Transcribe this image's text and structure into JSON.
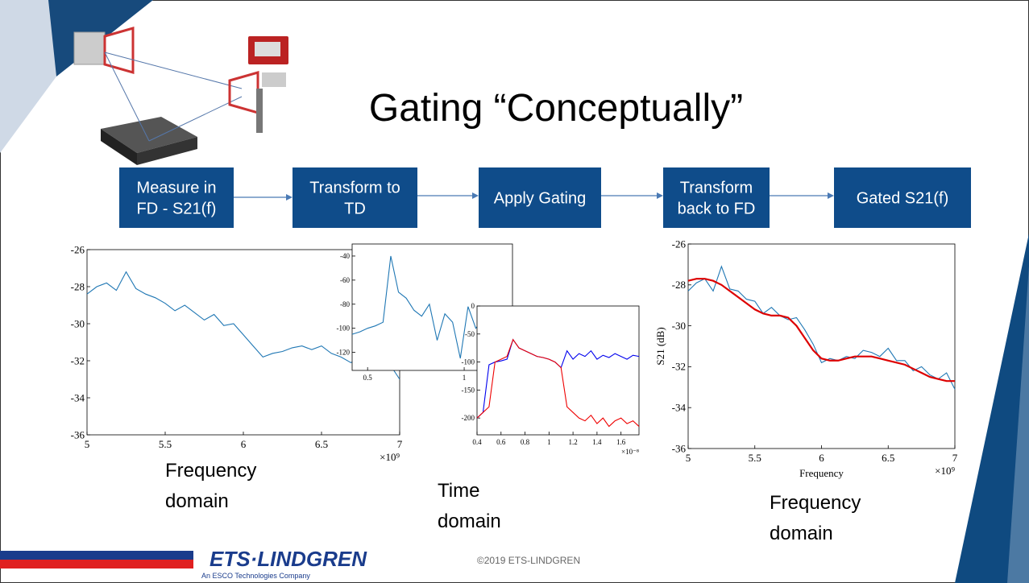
{
  "title": "Gating “Conceptually”",
  "steps": [
    [
      "Measure in",
      "FD - S21(f)"
    ],
    [
      "Transform to",
      "TD"
    ],
    [
      "Apply Gating"
    ],
    [
      "Transform",
      "back to FD"
    ],
    [
      "Gated S21(f)"
    ]
  ],
  "plots": [
    {
      "type": "line",
      "xlim": [
        5,
        7
      ],
      "ylim": [
        -36,
        -26
      ],
      "xticks": [
        5,
        5.5,
        6,
        6.5,
        7
      ],
      "yticks": [
        -36,
        -34,
        -32,
        -30,
        -28,
        -26
      ],
      "x_multiplier": "×10⁹",
      "x": [
        5,
        5.0625,
        5.125,
        5.1875,
        5.25,
        5.3125,
        5.375,
        5.4375,
        5.5,
        5.5625,
        5.625,
        5.6875,
        5.75,
        5.8125,
        5.875,
        5.9375,
        6,
        6.0625,
        6.125,
        6.1875,
        6.25,
        6.3125,
        6.375,
        6.4375,
        6.5,
        6.5625,
        6.625,
        6.6875,
        6.75,
        6.8125,
        6.875,
        6.9375,
        7
      ],
      "series": [
        {
          "color": "#1f77b4",
          "values": [
            -28.4,
            -28.0,
            -27.8,
            -28.2,
            -27.2,
            -28.1,
            -28.4,
            -28.6,
            -28.9,
            -29.3,
            -29.0,
            -29.4,
            -29.8,
            -29.5,
            -30.1,
            -30.0,
            -30.6,
            -31.2,
            -31.8,
            -31.6,
            -31.5,
            -31.3,
            -31.2,
            -31.4,
            -31.2,
            -31.6,
            -31.8,
            -32.1,
            -31.9,
            -32.3,
            -32.5,
            -32.2,
            -33.0
          ]
        }
      ]
    },
    {
      "type": "line",
      "xlim": [
        0.42,
        1.25
      ],
      "ylim": [
        -135,
        -30
      ],
      "xticks": [
        0.5,
        1
      ],
      "yticks": [
        -120,
        -100,
        -80,
        -60,
        -40
      ],
      "x": [
        0.42,
        0.46,
        0.5,
        0.54,
        0.58,
        0.62,
        0.66,
        0.7,
        0.74,
        0.78,
        0.82,
        0.86,
        0.9,
        0.94,
        0.98,
        1.02,
        1.06,
        1.1,
        1.14,
        1.18,
        1.22
      ],
      "series": [
        {
          "color": "#1f77b4",
          "values": [
            -105,
            -103,
            -100,
            -98,
            -95,
            -40,
            -70,
            -75,
            -85,
            -90,
            -80,
            -110,
            -88,
            -95,
            -125,
            -82,
            -100,
            -92,
            -120,
            -90,
            -85
          ]
        }
      ]
    },
    {
      "type": "line",
      "xlim": [
        0.4,
        1.75
      ],
      "ylim": [
        -230,
        0
      ],
      "xticks": [
        0.4,
        0.6,
        0.8,
        1,
        1.2,
        1.4,
        1.6
      ],
      "yticks": [
        -200,
        -150,
        -100,
        -50,
        0
      ],
      "x_multiplier": "×10⁻⁸",
      "x": [
        0.4,
        0.45,
        0.5,
        0.55,
        0.6,
        0.65,
        0.7,
        0.75,
        0.8,
        0.85,
        0.9,
        0.95,
        1,
        1.05,
        1.1,
        1.15,
        1.2,
        1.25,
        1.3,
        1.35,
        1.4,
        1.45,
        1.5,
        1.55,
        1.6,
        1.65,
        1.7,
        1.75
      ],
      "series": [
        {
          "color": "#0000ee",
          "values": [
            -200,
            -190,
            -105,
            -100,
            -98,
            -95,
            -60,
            -75,
            -80,
            -85,
            -90,
            -92,
            -95,
            -100,
            -110,
            -80,
            -95,
            -85,
            -90,
            -80,
            -95,
            -88,
            -92,
            -85,
            -90,
            -95,
            -88,
            -90
          ]
        },
        {
          "color": "#ee0000",
          "values": [
            -200,
            -190,
            -180,
            -100,
            -95,
            -90,
            -60,
            -75,
            -80,
            -85,
            -90,
            -92,
            -95,
            -100,
            -110,
            -180,
            -190,
            -200,
            -205,
            -195,
            -210,
            -200,
            -215,
            -205,
            -200,
            -210,
            -205,
            -215
          ]
        }
      ]
    },
    {
      "type": "line",
      "xlim": [
        5,
        7
      ],
      "ylim": [
        -36,
        -26
      ],
      "xticks": [
        5,
        5.5,
        6,
        6.5,
        7
      ],
      "yticks": [
        -36,
        -34,
        -32,
        -30,
        -28,
        -26
      ],
      "x_multiplier": "×10⁹",
      "xlabel": "Frequency",
      "ylabel": "S21 (dB)",
      "x": [
        5,
        5.0625,
        5.125,
        5.1875,
        5.25,
        5.3125,
        5.375,
        5.4375,
        5.5,
        5.5625,
        5.625,
        5.6875,
        5.75,
        5.8125,
        5.875,
        5.9375,
        6,
        6.0625,
        6.125,
        6.1875,
        6.25,
        6.3125,
        6.375,
        6.4375,
        6.5,
        6.5625,
        6.625,
        6.6875,
        6.75,
        6.8125,
        6.875,
        6.9375,
        7
      ],
      "series": [
        {
          "color": "#1f77b4",
          "values": [
            -28.3,
            -27.9,
            -27.7,
            -28.3,
            -27.1,
            -28.2,
            -28.3,
            -28.7,
            -28.8,
            -29.4,
            -29.1,
            -29.5,
            -29.7,
            -29.6,
            -30.2,
            -30.9,
            -31.8,
            -31.6,
            -31.7,
            -31.5,
            -31.6,
            -31.2,
            -31.3,
            -31.5,
            -31.1,
            -31.7,
            -31.7,
            -32.2,
            -32.0,
            -32.4,
            -32.6,
            -32.3,
            -33.1
          ]
        },
        {
          "color": "#dd0000",
          "values": [
            -27.8,
            -27.7,
            -27.7,
            -27.8,
            -28.0,
            -28.3,
            -28.6,
            -28.9,
            -29.2,
            -29.4,
            -29.5,
            -29.5,
            -29.6,
            -30.0,
            -30.6,
            -31.2,
            -31.6,
            -31.7,
            -31.7,
            -31.6,
            -31.5,
            -31.5,
            -31.5,
            -31.6,
            -31.7,
            -31.8,
            -31.9,
            -32.1,
            -32.3,
            -32.5,
            -32.6,
            -32.7,
            -32.7
          ]
        }
      ]
    }
  ],
  "captions": [
    [
      "Frequency",
      "domain"
    ],
    [
      "Time",
      "domain"
    ],
    [
      "Frequency",
      "domain"
    ]
  ],
  "footer": {
    "copyright": "©2019 ETS-LINDGREN",
    "logo": "ETS·LINDGREN",
    "logo_sub": "An ESCO Technologies Company"
  }
}
